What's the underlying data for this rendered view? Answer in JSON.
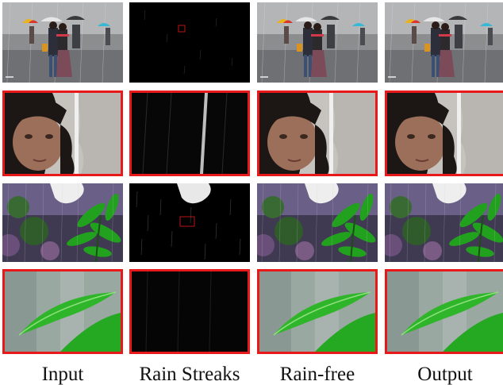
{
  "figure": {
    "columns": [
      {
        "label": "Input"
      },
      {
        "label": "Rain Streaks"
      },
      {
        "label": "Rain-free"
      },
      {
        "label": "Output"
      }
    ],
    "rows": [
      {
        "scene": "street-umbrellas-full"
      },
      {
        "scene": "street-umbrellas-zoom-face"
      },
      {
        "scene": "leaves-full"
      },
      {
        "scene": "leaves-zoom-leaf"
      }
    ],
    "colors": {
      "zoom_border": "#e8191a",
      "streak_background": "#000000",
      "leaf_green": "#2fb52a"
    }
  }
}
